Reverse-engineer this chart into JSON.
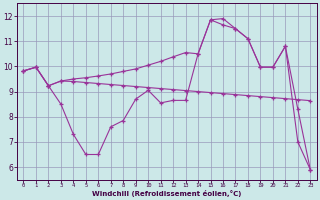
{
  "bg_color": "#cce8e8",
  "line_color": "#993399",
  "marker": "+",
  "xlabel": "Windchill (Refroidissement éolien,°C)",
  "ylim": [
    5.5,
    12.5
  ],
  "xlim": [
    -0.5,
    23.5
  ],
  "yticks": [
    6,
    7,
    8,
    9,
    10,
    11,
    12
  ],
  "xticks": [
    0,
    1,
    2,
    3,
    4,
    5,
    6,
    7,
    8,
    9,
    10,
    11,
    12,
    13,
    14,
    15,
    16,
    17,
    18,
    19,
    20,
    21,
    22,
    23
  ],
  "grid_color": "#9999bb",
  "line1_x": [
    0,
    1,
    2,
    3,
    4,
    5,
    6,
    7,
    8,
    9,
    10,
    11,
    12,
    13,
    14,
    15,
    16,
    17,
    18,
    19,
    20,
    21,
    22,
    23
  ],
  "line1_y": [
    9.82,
    9.97,
    9.23,
    9.42,
    9.4,
    9.36,
    9.32,
    9.28,
    9.24,
    9.2,
    9.16,
    9.12,
    9.08,
    9.04,
    9.0,
    8.96,
    8.92,
    8.88,
    8.84,
    8.8,
    8.76,
    8.72,
    8.68,
    8.64
  ],
  "line2_x": [
    0,
    1,
    2,
    3,
    4,
    5,
    6,
    7,
    8,
    9,
    10,
    11,
    12,
    13,
    14,
    15,
    16,
    17,
    18,
    19,
    20,
    21,
    22,
    23
  ],
  "line2_y": [
    9.82,
    9.97,
    9.23,
    9.42,
    9.5,
    9.55,
    9.62,
    9.7,
    9.8,
    9.9,
    10.05,
    10.2,
    10.38,
    10.55,
    10.5,
    11.85,
    11.9,
    11.5,
    11.1,
    9.97,
    9.97,
    10.8,
    8.3,
    5.9
  ],
  "line3_x": [
    0,
    1,
    2,
    3,
    4,
    5,
    6,
    7,
    8,
    9,
    10,
    11,
    12,
    13,
    14,
    15,
    16,
    17,
    18,
    19,
    20,
    21,
    22,
    23
  ],
  "line3_y": [
    9.82,
    9.97,
    9.23,
    8.5,
    7.3,
    6.5,
    6.5,
    7.6,
    7.85,
    8.7,
    9.05,
    8.55,
    8.65,
    8.65,
    10.5,
    11.85,
    11.65,
    11.5,
    11.1,
    9.97,
    9.97,
    10.8,
    7.0,
    5.9
  ]
}
